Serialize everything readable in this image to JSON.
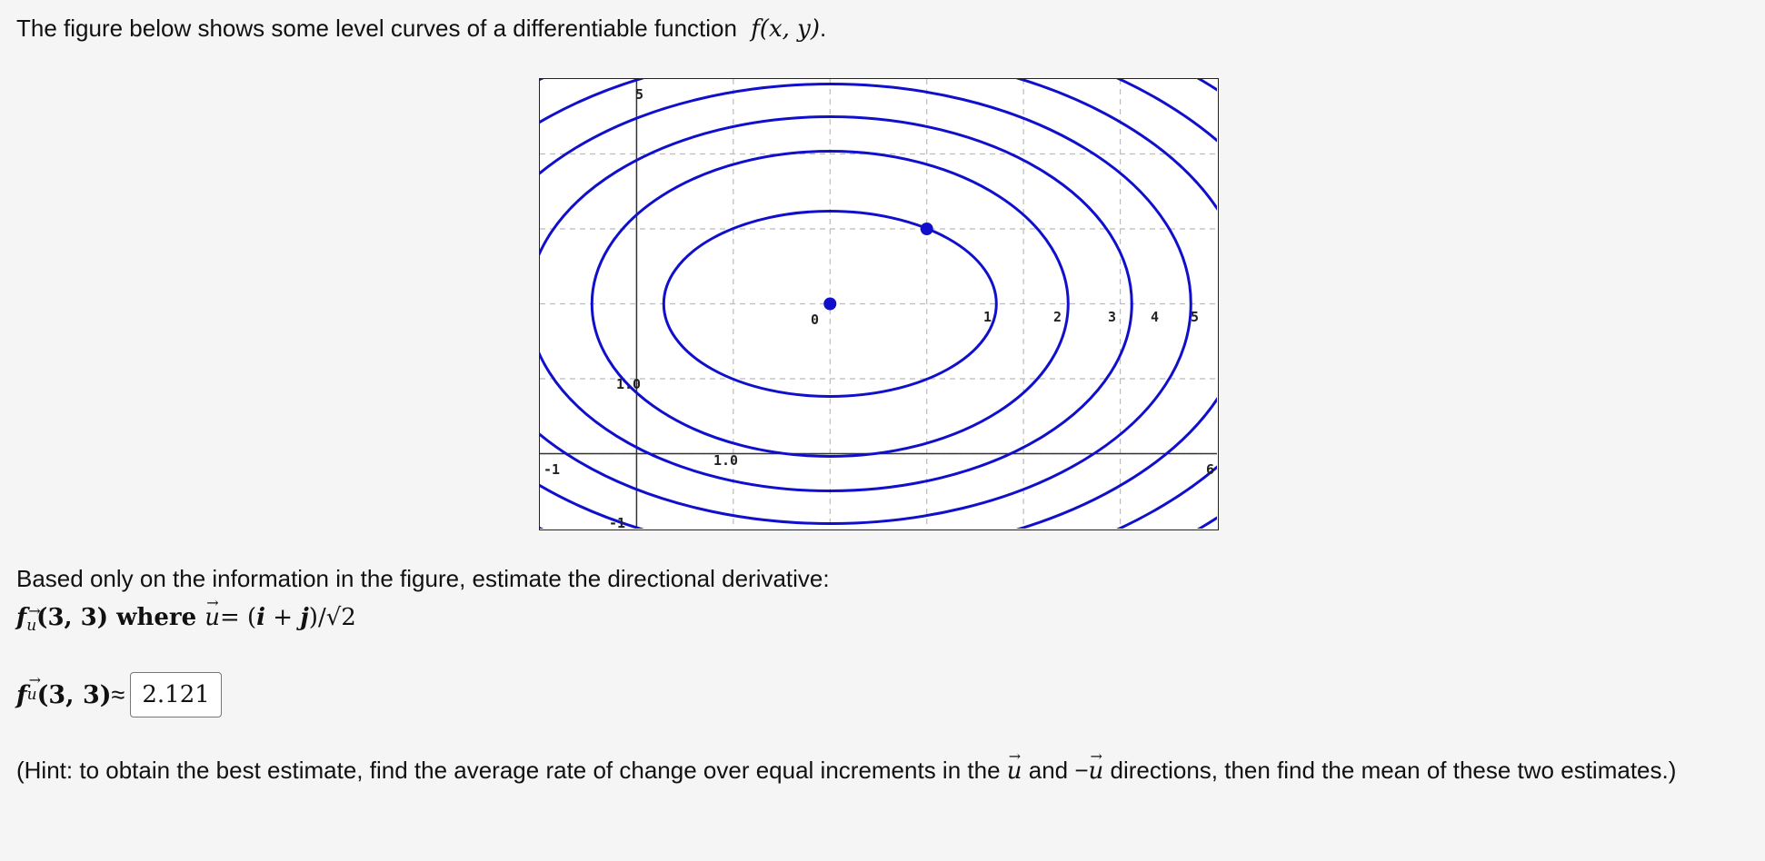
{
  "intro": {
    "text": "The figure below shows some level curves of a differentiable function",
    "func": "f(x, y)",
    "period": "."
  },
  "figure": {
    "x_axis_label": "",
    "y_axis_label": "",
    "x_ticks_on_axis": [
      "-1",
      "6"
    ],
    "level_labels_x": [
      "0",
      "1",
      "2",
      "3",
      "4",
      "5"
    ],
    "y_tick_top": "5",
    "y_tick_bottom": "-1",
    "inner_labels": [
      "1.0",
      "1.0"
    ],
    "x_range": [
      -1,
      6
    ],
    "y_range": [
      -1,
      5
    ],
    "grid": true,
    "curve_color": "#1010cc",
    "points": [
      {
        "x": 2,
        "y": 2
      },
      {
        "x": 3,
        "y": 3
      }
    ]
  },
  "question": {
    "prompt": "Based only on the information in the figure, estimate the directional derivative:",
    "expr_lhs": "f",
    "expr_sub": "u",
    "expr_args": "(3, 3)",
    "where_word": " where ",
    "u_def": "= (",
    "i_vec": "i",
    "plus": " + ",
    "j_vec": "j",
    "u_den": ")/√2"
  },
  "answer": {
    "lhs": "f",
    "sub": "u",
    "args": "(3, 3)",
    "approx": " ≈",
    "value": "2.121"
  },
  "hint": {
    "part1": "(Hint: to obtain the best estimate, find the average rate of change over equal increments in the ",
    "u1": "u",
    "and": " and ",
    "minus": "−",
    "u2": "u",
    "part2": " directions, then find the mean of these two estimates.)"
  }
}
